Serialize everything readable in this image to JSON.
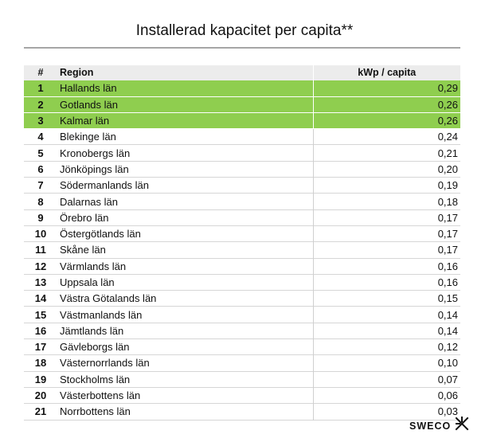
{
  "title": "Installerad kapacitet per capita**",
  "table": {
    "headers": {
      "rank": "#",
      "region": "Region",
      "value": "kWp / capita"
    },
    "highlight_color": "#8fce4f",
    "rows": [
      {
        "rank": "1",
        "region": "Hallands län",
        "value": "0,29",
        "highlight": true
      },
      {
        "rank": "2",
        "region": "Gotlands län",
        "value": "0,26",
        "highlight": true
      },
      {
        "rank": "3",
        "region": "Kalmar län",
        "value": "0,26",
        "highlight": true
      },
      {
        "rank": "4",
        "region": "Blekinge län",
        "value": "0,24",
        "highlight": false
      },
      {
        "rank": "5",
        "region": "Kronobergs län",
        "value": "0,21",
        "highlight": false
      },
      {
        "rank": "6",
        "region": "Jönköpings län",
        "value": "0,20",
        "highlight": false
      },
      {
        "rank": "7",
        "region": "Södermanlands län",
        "value": "0,19",
        "highlight": false
      },
      {
        "rank": "8",
        "region": "Dalarnas län",
        "value": "0,18",
        "highlight": false
      },
      {
        "rank": "9",
        "region": "Örebro län",
        "value": "0,17",
        "highlight": false
      },
      {
        "rank": "10",
        "region": "Östergötlands län",
        "value": "0,17",
        "highlight": false
      },
      {
        "rank": "11",
        "region": "Skåne län",
        "value": "0,17",
        "highlight": false
      },
      {
        "rank": "12",
        "region": "Värmlands län",
        "value": "0,16",
        "highlight": false
      },
      {
        "rank": "13",
        "region": "Uppsala län",
        "value": "0,16",
        "highlight": false
      },
      {
        "rank": "14",
        "region": "Västra Götalands län",
        "value": "0,15",
        "highlight": false
      },
      {
        "rank": "15",
        "region": "Västmanlands län",
        "value": "0,14",
        "highlight": false
      },
      {
        "rank": "16",
        "region": "Jämtlands län",
        "value": "0,14",
        "highlight": false
      },
      {
        "rank": "17",
        "region": "Gävleborgs län",
        "value": "0,12",
        "highlight": false
      },
      {
        "rank": "18",
        "region": "Västernorrlands län",
        "value": "0,10",
        "highlight": false
      },
      {
        "rank": "19",
        "region": "Stockholms län",
        "value": "0,07",
        "highlight": false
      },
      {
        "rank": "20",
        "region": "Västerbottens län",
        "value": "0,06",
        "highlight": false
      },
      {
        "rank": "21",
        "region": "Norrbottens län",
        "value": "0,03",
        "highlight": false
      }
    ]
  },
  "logo": {
    "text": "SWECO",
    "icon": "sweco-logo-icon"
  }
}
